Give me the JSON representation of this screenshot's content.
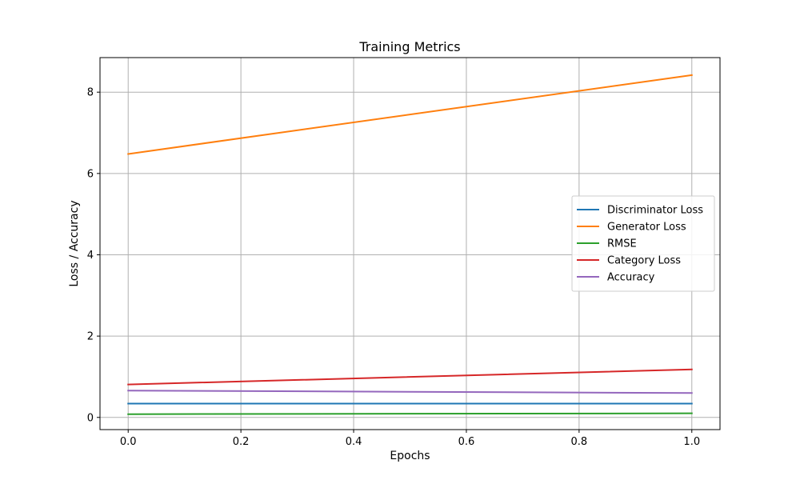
{
  "chart_data": {
    "type": "line",
    "title": "Training Metrics",
    "xlabel": "Epochs",
    "ylabel": "Loss / Accuracy",
    "xlim": [
      -0.05,
      1.05
    ],
    "ylim": [
      -0.3,
      8.85
    ],
    "xticks": [
      0.0,
      0.2,
      0.4,
      0.6,
      0.8,
      1.0
    ],
    "xtick_labels": [
      "0.0",
      "0.2",
      "0.4",
      "0.6",
      "0.8",
      "1.0"
    ],
    "yticks": [
      0,
      2,
      4,
      6,
      8
    ],
    "ytick_labels": [
      "0",
      "2",
      "4",
      "6",
      "8"
    ],
    "grid": true,
    "legend_position": "center-right",
    "x": [
      0,
      1
    ],
    "series": [
      {
        "name": "Discriminator Loss",
        "color": "#1f77b4",
        "values": [
          0.34,
          0.34
        ]
      },
      {
        "name": "Generator Loss",
        "color": "#ff7f0e",
        "values": [
          6.48,
          8.42
        ]
      },
      {
        "name": "RMSE",
        "color": "#2ca02c",
        "values": [
          0.08,
          0.1
        ]
      },
      {
        "name": "Category Loss",
        "color": "#d62728",
        "values": [
          0.81,
          1.18
        ]
      },
      {
        "name": "Accuracy",
        "color": "#9467bd",
        "values": [
          0.66,
          0.6
        ]
      }
    ]
  }
}
